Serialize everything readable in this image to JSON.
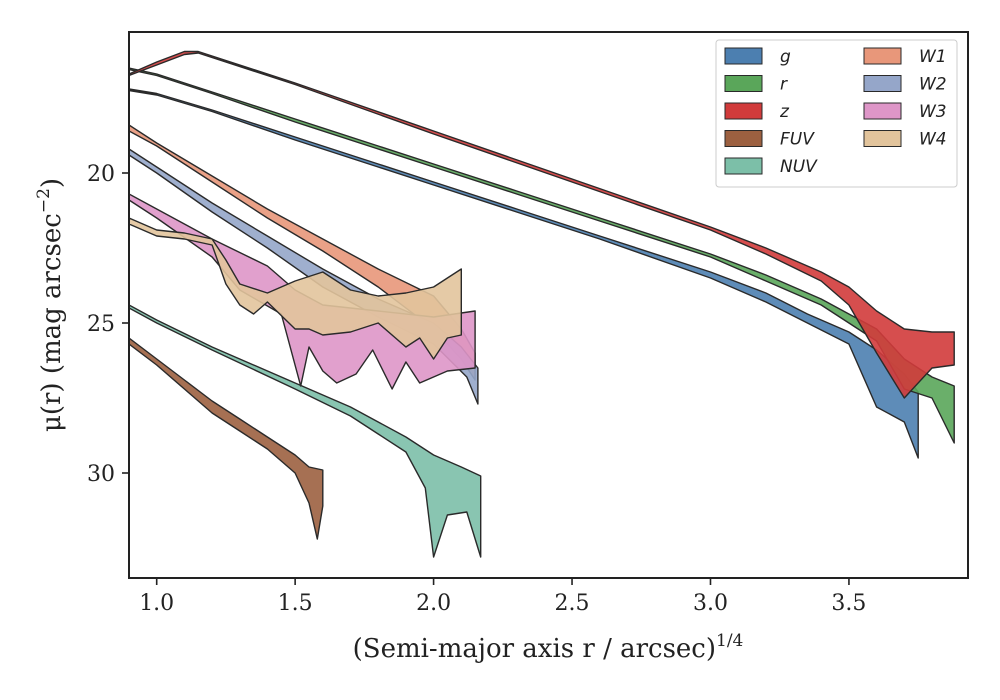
{
  "chart_data": {
    "type": "area",
    "xlabel": "(Semi-major axis r / arcsec)",
    "xlabel_italic_r": "r",
    "xlabel_exponent": "1/4",
    "ylabel": "μ(r) (mag arcsec",
    "ylabel_exponent": "−2",
    "x_range": [
      0.9,
      3.93
    ],
    "y_range": [
      33.5,
      15.3
    ],
    "y_inverted": true,
    "x_ticks": [
      1.0,
      1.5,
      2.0,
      2.5,
      3.0,
      3.5
    ],
    "x_tick_labels": [
      "1.0",
      "1.5",
      "2.0",
      "2.5",
      "3.0",
      "3.5"
    ],
    "y_ticks": [
      20,
      25,
      30
    ],
    "y_tick_labels": [
      "20",
      "25",
      "30"
    ],
    "grid": false,
    "legend_position": "top-right",
    "legend_columns": 2,
    "series": [
      {
        "name": "g",
        "color": "#4c7fb0",
        "upper": [
          [
            0.9,
            17.2
          ],
          [
            1.0,
            17.35
          ],
          [
            1.2,
            17.9
          ],
          [
            1.5,
            18.8
          ],
          [
            1.8,
            19.7
          ],
          [
            2.0,
            20.3
          ],
          [
            2.3,
            21.2
          ],
          [
            2.6,
            22.1
          ],
          [
            3.0,
            23.3
          ],
          [
            3.2,
            24.0
          ],
          [
            3.35,
            24.7
          ],
          [
            3.5,
            25.3
          ],
          [
            3.6,
            25.9
          ],
          [
            3.7,
            26.7
          ],
          [
            3.75,
            27.3
          ]
        ],
        "lower": [
          [
            3.75,
            29.5
          ],
          [
            3.7,
            28.3
          ],
          [
            3.6,
            27.8
          ],
          [
            3.5,
            25.7
          ],
          [
            3.35,
            25.0
          ],
          [
            3.2,
            24.3
          ],
          [
            3.0,
            23.5
          ],
          [
            2.6,
            22.2
          ],
          [
            2.3,
            21.3
          ],
          [
            2.0,
            20.4
          ],
          [
            1.8,
            19.8
          ],
          [
            1.5,
            18.9
          ],
          [
            1.2,
            17.95
          ],
          [
            1.0,
            17.4
          ],
          [
            0.9,
            17.25
          ]
        ]
      },
      {
        "name": "r",
        "color": "#5aa65a",
        "upper": [
          [
            0.9,
            16.5
          ],
          [
            1.0,
            16.7
          ],
          [
            1.2,
            17.3
          ],
          [
            1.5,
            18.2
          ],
          [
            1.8,
            19.1
          ],
          [
            2.0,
            19.7
          ],
          [
            2.3,
            20.6
          ],
          [
            2.6,
            21.5
          ],
          [
            3.0,
            22.7
          ],
          [
            3.2,
            23.4
          ],
          [
            3.4,
            24.2
          ],
          [
            3.5,
            24.7
          ],
          [
            3.6,
            25.2
          ],
          [
            3.7,
            26.2
          ],
          [
            3.8,
            26.8
          ],
          [
            3.88,
            27.1
          ]
        ],
        "lower": [
          [
            3.88,
            29.0
          ],
          [
            3.8,
            27.5
          ],
          [
            3.7,
            27.2
          ],
          [
            3.6,
            25.6
          ],
          [
            3.5,
            25.0
          ],
          [
            3.4,
            24.4
          ],
          [
            3.2,
            23.6
          ],
          [
            3.0,
            22.8
          ],
          [
            2.6,
            21.6
          ],
          [
            2.3,
            20.7
          ],
          [
            2.0,
            19.8
          ],
          [
            1.8,
            19.2
          ],
          [
            1.5,
            18.3
          ],
          [
            1.2,
            17.35
          ],
          [
            1.0,
            16.75
          ],
          [
            0.9,
            16.55
          ]
        ]
      },
      {
        "name": "z",
        "color": "#d13b3b",
        "upper": [
          [
            0.9,
            16.7
          ],
          [
            1.0,
            16.3
          ],
          [
            1.1,
            15.95
          ],
          [
            1.15,
            15.95
          ],
          [
            1.5,
            17.0
          ],
          [
            2.0,
            18.6
          ],
          [
            2.5,
            20.2
          ],
          [
            3.0,
            21.8
          ],
          [
            3.2,
            22.5
          ],
          [
            3.4,
            23.3
          ],
          [
            3.5,
            23.8
          ],
          [
            3.6,
            24.6
          ],
          [
            3.7,
            25.2
          ],
          [
            3.8,
            25.3
          ],
          [
            3.88,
            25.3
          ]
        ],
        "lower": [
          [
            3.88,
            26.4
          ],
          [
            3.8,
            26.5
          ],
          [
            3.7,
            27.5
          ],
          [
            3.6,
            26.0
          ],
          [
            3.5,
            24.4
          ],
          [
            3.4,
            23.6
          ],
          [
            3.2,
            22.7
          ],
          [
            3.0,
            21.9
          ],
          [
            2.5,
            20.3
          ],
          [
            2.0,
            18.7
          ],
          [
            1.5,
            17.05
          ],
          [
            1.15,
            16.0
          ],
          [
            1.1,
            16.05
          ],
          [
            1.0,
            16.4
          ],
          [
            0.9,
            16.75
          ]
        ]
      },
      {
        "name": "FUV",
        "color": "#9c6040",
        "upper": [
          [
            0.9,
            25.5
          ],
          [
            1.0,
            26.2
          ],
          [
            1.1,
            26.9
          ],
          [
            1.2,
            27.6
          ],
          [
            1.3,
            28.2
          ],
          [
            1.4,
            28.8
          ],
          [
            1.5,
            29.4
          ],
          [
            1.55,
            29.8
          ],
          [
            1.6,
            29.9
          ]
        ],
        "lower": [
          [
            1.6,
            31.1
          ],
          [
            1.58,
            32.2
          ],
          [
            1.55,
            31.0
          ],
          [
            1.5,
            30.0
          ],
          [
            1.4,
            29.2
          ],
          [
            1.3,
            28.6
          ],
          [
            1.2,
            28.0
          ],
          [
            1.1,
            27.2
          ],
          [
            1.0,
            26.4
          ],
          [
            0.9,
            25.7
          ]
        ]
      },
      {
        "name": "NUV",
        "color": "#7cbfa8",
        "upper": [
          [
            0.9,
            24.4
          ],
          [
            1.0,
            24.9
          ],
          [
            1.2,
            25.8
          ],
          [
            1.5,
            27.0
          ],
          [
            1.7,
            27.8
          ],
          [
            1.8,
            28.3
          ],
          [
            1.9,
            28.8
          ],
          [
            2.0,
            29.4
          ],
          [
            2.1,
            29.8
          ],
          [
            2.17,
            30.1
          ]
        ],
        "lower": [
          [
            2.17,
            32.8
          ],
          [
            2.12,
            31.3
          ],
          [
            2.05,
            31.4
          ],
          [
            2.0,
            32.8
          ],
          [
            1.97,
            30.5
          ],
          [
            1.9,
            29.3
          ],
          [
            1.8,
            28.7
          ],
          [
            1.7,
            28.1
          ],
          [
            1.5,
            27.2
          ],
          [
            1.2,
            25.9
          ],
          [
            1.0,
            25.0
          ],
          [
            0.9,
            24.5
          ]
        ]
      },
      {
        "name": "W1",
        "color": "#e8977a",
        "upper": [
          [
            0.9,
            18.4
          ],
          [
            1.0,
            19.0
          ],
          [
            1.2,
            20.1
          ],
          [
            1.4,
            21.2
          ],
          [
            1.6,
            22.2
          ],
          [
            1.8,
            23.2
          ],
          [
            2.0,
            24.1
          ],
          [
            2.1,
            25.2
          ],
          [
            2.15,
            26.0
          ]
        ],
        "lower": [
          [
            2.15,
            26.9
          ],
          [
            2.1,
            26.2
          ],
          [
            2.0,
            25.2
          ],
          [
            1.8,
            23.8
          ],
          [
            1.6,
            22.6
          ],
          [
            1.4,
            21.5
          ],
          [
            1.2,
            20.3
          ],
          [
            1.0,
            19.1
          ],
          [
            0.9,
            18.6
          ]
        ]
      },
      {
        "name": "W2",
        "color": "#95a6c9",
        "upper": [
          [
            0.9,
            19.2
          ],
          [
            1.0,
            19.8
          ],
          [
            1.2,
            21.0
          ],
          [
            1.4,
            22.1
          ],
          [
            1.6,
            23.2
          ],
          [
            1.8,
            24.2
          ],
          [
            2.0,
            25.0
          ],
          [
            2.1,
            25.8
          ],
          [
            2.16,
            26.5
          ]
        ],
        "lower": [
          [
            2.16,
            27.7
          ],
          [
            2.12,
            26.8
          ],
          [
            2.0,
            25.7
          ],
          [
            1.8,
            24.8
          ],
          [
            1.6,
            23.8
          ],
          [
            1.4,
            22.5
          ],
          [
            1.2,
            21.3
          ],
          [
            1.0,
            20.0
          ],
          [
            0.9,
            19.4
          ]
        ]
      },
      {
        "name": "W3",
        "color": "#de96c8",
        "upper": [
          [
            0.9,
            20.7
          ],
          [
            1.0,
            21.2
          ],
          [
            1.2,
            22.2
          ],
          [
            1.4,
            23.1
          ],
          [
            1.5,
            23.9
          ],
          [
            1.6,
            24.4
          ],
          [
            1.8,
            24.6
          ],
          [
            2.0,
            24.8
          ],
          [
            2.15,
            24.6
          ]
        ],
        "lower": [
          [
            2.15,
            26.5
          ],
          [
            2.05,
            26.6
          ],
          [
            1.95,
            27.0
          ],
          [
            1.9,
            26.3
          ],
          [
            1.85,
            27.2
          ],
          [
            1.78,
            25.9
          ],
          [
            1.72,
            26.7
          ],
          [
            1.65,
            27.0
          ],
          [
            1.6,
            26.6
          ],
          [
            1.55,
            25.8
          ],
          [
            1.52,
            27.1
          ],
          [
            1.45,
            24.7
          ],
          [
            1.3,
            23.9
          ],
          [
            1.2,
            22.8
          ],
          [
            1.0,
            21.5
          ],
          [
            0.9,
            20.9
          ]
        ]
      },
      {
        "name": "W4",
        "color": "#e2c49c",
        "upper": [
          [
            0.9,
            21.5
          ],
          [
            1.0,
            21.9
          ],
          [
            1.1,
            22.0
          ],
          [
            1.2,
            22.2
          ],
          [
            1.25,
            22.9
          ],
          [
            1.3,
            23.7
          ],
          [
            1.4,
            24.0
          ],
          [
            1.5,
            23.6
          ],
          [
            1.6,
            23.3
          ],
          [
            1.7,
            23.9
          ],
          [
            1.8,
            24.1
          ],
          [
            1.9,
            24.0
          ],
          [
            2.0,
            23.8
          ],
          [
            2.05,
            23.5
          ],
          [
            2.1,
            23.2
          ]
        ],
        "lower": [
          [
            2.1,
            25.4
          ],
          [
            2.05,
            25.5
          ],
          [
            2.0,
            26.2
          ],
          [
            1.95,
            25.5
          ],
          [
            1.9,
            25.8
          ],
          [
            1.8,
            25.0
          ],
          [
            1.7,
            25.3
          ],
          [
            1.6,
            25.4
          ],
          [
            1.55,
            25.2
          ],
          [
            1.5,
            25.2
          ],
          [
            1.4,
            24.3
          ],
          [
            1.35,
            24.7
          ],
          [
            1.3,
            24.4
          ],
          [
            1.25,
            23.7
          ],
          [
            1.2,
            22.4
          ],
          [
            1.1,
            22.2
          ],
          [
            1.0,
            22.1
          ],
          [
            0.9,
            21.7
          ]
        ]
      }
    ]
  }
}
